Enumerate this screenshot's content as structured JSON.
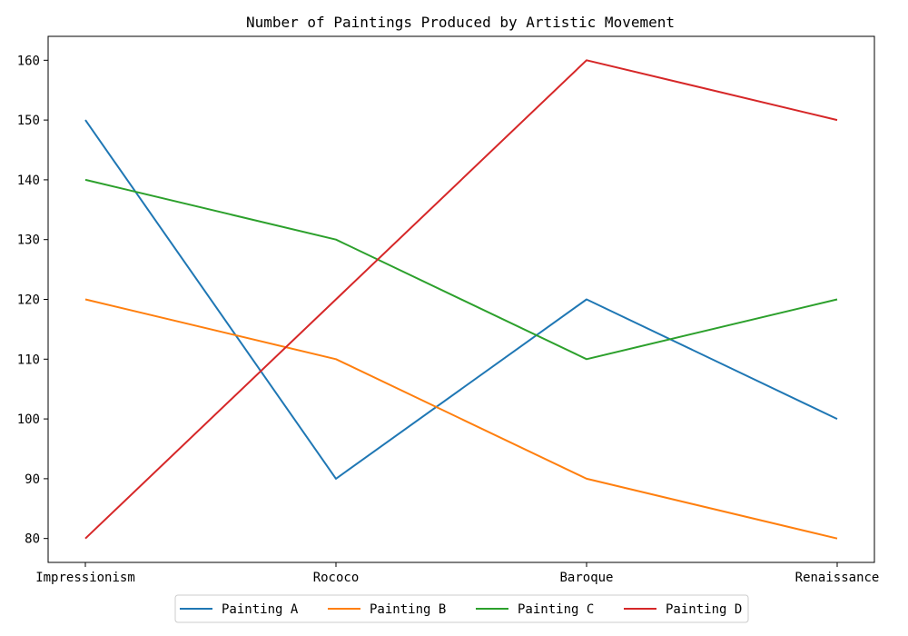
{
  "chart_data": {
    "type": "line",
    "title": "Number of Paintings Produced by Artistic Movement",
    "xlabel": "",
    "ylabel": "",
    "categories": [
      "Impressionism",
      "Rococo",
      "Baroque",
      "Renaissance"
    ],
    "ylim": [
      76,
      164
    ],
    "yticks": [
      80,
      90,
      100,
      110,
      120,
      130,
      140,
      150,
      160
    ],
    "grid": false,
    "legend_position": "bottom-center",
    "series": [
      {
        "name": "Painting A",
        "color": "#1f77b4",
        "values": [
          150,
          90,
          120,
          100
        ]
      },
      {
        "name": "Painting B",
        "color": "#ff7f0e",
        "values": [
          120,
          110,
          90,
          80
        ]
      },
      {
        "name": "Painting C",
        "color": "#2ca02c",
        "values": [
          140,
          130,
          110,
          120
        ]
      },
      {
        "name": "Painting D",
        "color": "#d62728",
        "values": [
          80,
          120,
          160,
          150
        ]
      }
    ]
  }
}
